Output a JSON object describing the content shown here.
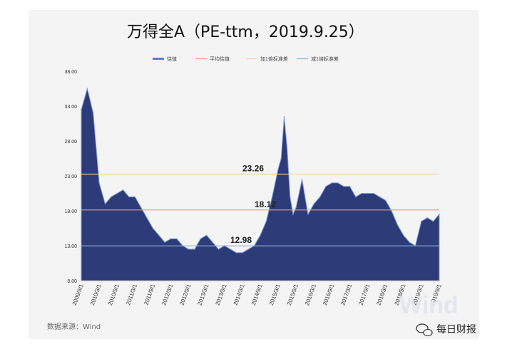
{
  "chart_data": {
    "type": "area",
    "title": "万得全A（PE-ttm，2019.9.25）",
    "legend": [
      "估值",
      "平均估值",
      "加1倍标准差",
      "减1倍标准差"
    ],
    "ylim": [
      8,
      38
    ],
    "y_ticks": [
      "38.00",
      "33.00",
      "28.00",
      "23.00",
      "18.00",
      "13.00",
      "8.00"
    ],
    "x_ticks": [
      "2009/9/1",
      "2010/3/1",
      "2010/9/1",
      "2011/3/1",
      "2011/9/1",
      "2012/3/1",
      "2012/9/1",
      "2013/3/1",
      "2013/9/1",
      "2014/3/1",
      "2014/9/1",
      "2015/3/1",
      "2015/9/1",
      "2016/3/1",
      "2016/9/1",
      "2017/3/1",
      "2017/9/1",
      "2018/3/1",
      "2018/9/1",
      "2019/3/1",
      "2019/9/1"
    ],
    "series": [
      {
        "name": "估值",
        "x": [
          "2009/9/1",
          "2009/11/1",
          "2010/1/1",
          "2010/3/1",
          "2010/5/1",
          "2010/7/1",
          "2010/9/1",
          "2010/11/1",
          "2011/1/1",
          "2011/3/1",
          "2011/5/1",
          "2011/7/1",
          "2011/9/1",
          "2011/11/1",
          "2012/1/1",
          "2012/3/1",
          "2012/5/1",
          "2012/7/1",
          "2012/9/1",
          "2012/11/1",
          "2013/1/1",
          "2013/3/1",
          "2013/5/1",
          "2013/7/1",
          "2013/9/1",
          "2013/11/1",
          "2014/1/1",
          "2014/3/1",
          "2014/5/1",
          "2014/7/1",
          "2014/9/1",
          "2014/11/1",
          "2015/1/1",
          "2015/3/1",
          "2015/4/1",
          "2015/5/1",
          "2015/6/1",
          "2015/7/1",
          "2015/8/1",
          "2015/9/1",
          "2015/11/1",
          "2016/1/1",
          "2016/3/1",
          "2016/5/1",
          "2016/7/1",
          "2016/9/1",
          "2016/11/1",
          "2017/1/1",
          "2017/3/1",
          "2017/5/1",
          "2017/7/1",
          "2017/9/1",
          "2017/11/1",
          "2018/1/1",
          "2018/3/1",
          "2018/5/1",
          "2018/7/1",
          "2018/9/1",
          "2018/11/1",
          "2019/1/1",
          "2019/3/1",
          "2019/5/1",
          "2019/7/1",
          "2019/9/1"
        ],
        "values": [
          32.5,
          35.5,
          32.0,
          22.0,
          19.0,
          20.0,
          20.5,
          21.0,
          20.0,
          20.0,
          18.5,
          17.0,
          15.5,
          14.5,
          13.5,
          14.0,
          14.0,
          13.0,
          12.5,
          12.5,
          14.0,
          14.5,
          13.5,
          12.5,
          13.0,
          12.5,
          12.0,
          12.0,
          12.5,
          13.0,
          14.5,
          16.5,
          20.0,
          24.0,
          25.5,
          31.5,
          27.0,
          20.0,
          17.5,
          18.5,
          22.5,
          17.5,
          19.0,
          20.0,
          21.5,
          22.0,
          22.0,
          21.5,
          21.5,
          20.0,
          20.5,
          20.5,
          20.5,
          20.0,
          19.5,
          18.0,
          16.0,
          14.5,
          13.5,
          13.0,
          16.5,
          17.0,
          16.5,
          17.5
        ]
      }
    ],
    "reference_lines": [
      {
        "name": "加1倍标准差",
        "value": 23.26,
        "label": "23.26",
        "color": "#f1d39a"
      },
      {
        "name": "平均估值",
        "value": 18.12,
        "label": "18.12",
        "color": "#e89a86"
      },
      {
        "name": "减1倍标准差",
        "value": 12.98,
        "label": "12.98",
        "color": "#8fb1d6"
      }
    ],
    "colors": {
      "area": "#2d3b78",
      "area_stroke": "#7f9bd6"
    },
    "source": "数据来源：Wind",
    "brand": "每日财报",
    "watermark": "Wind"
  }
}
